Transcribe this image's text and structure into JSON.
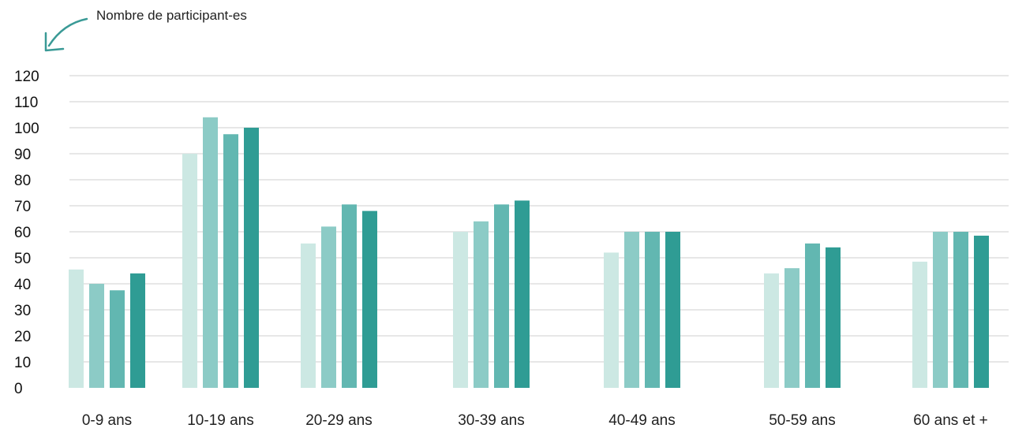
{
  "chart_data": {
    "type": "bar",
    "ylabel": "Nombre de participant-es",
    "ylim": [
      0,
      120
    ],
    "yticks": [
      0,
      10,
      20,
      30,
      40,
      50,
      60,
      70,
      80,
      90,
      100,
      110,
      120
    ],
    "grid": true,
    "categories": [
      "0-9 ans",
      "10-19 ans",
      "20-29 ans",
      "30-39 ans",
      "40-49 ans",
      "50-59 ans",
      "60 ans et +"
    ],
    "series": [
      {
        "color": "#cce8e3",
        "values": [
          45.5,
          90,
          55.5,
          60,
          52,
          44,
          48.5
        ]
      },
      {
        "color": "#8ccbc6",
        "values": [
          40,
          104,
          62,
          64,
          60,
          46,
          60
        ]
      },
      {
        "color": "#62b7b1",
        "values": [
          37.5,
          97.5,
          70.5,
          70.5,
          60,
          55.5,
          60
        ]
      },
      {
        "color": "#2f9c94",
        "values": [
          44,
          100,
          68,
          72,
          60,
          54,
          58.5
        ]
      }
    ],
    "arrow_color": "#3a9a96",
    "gridline_color": "#cfcfcf"
  }
}
